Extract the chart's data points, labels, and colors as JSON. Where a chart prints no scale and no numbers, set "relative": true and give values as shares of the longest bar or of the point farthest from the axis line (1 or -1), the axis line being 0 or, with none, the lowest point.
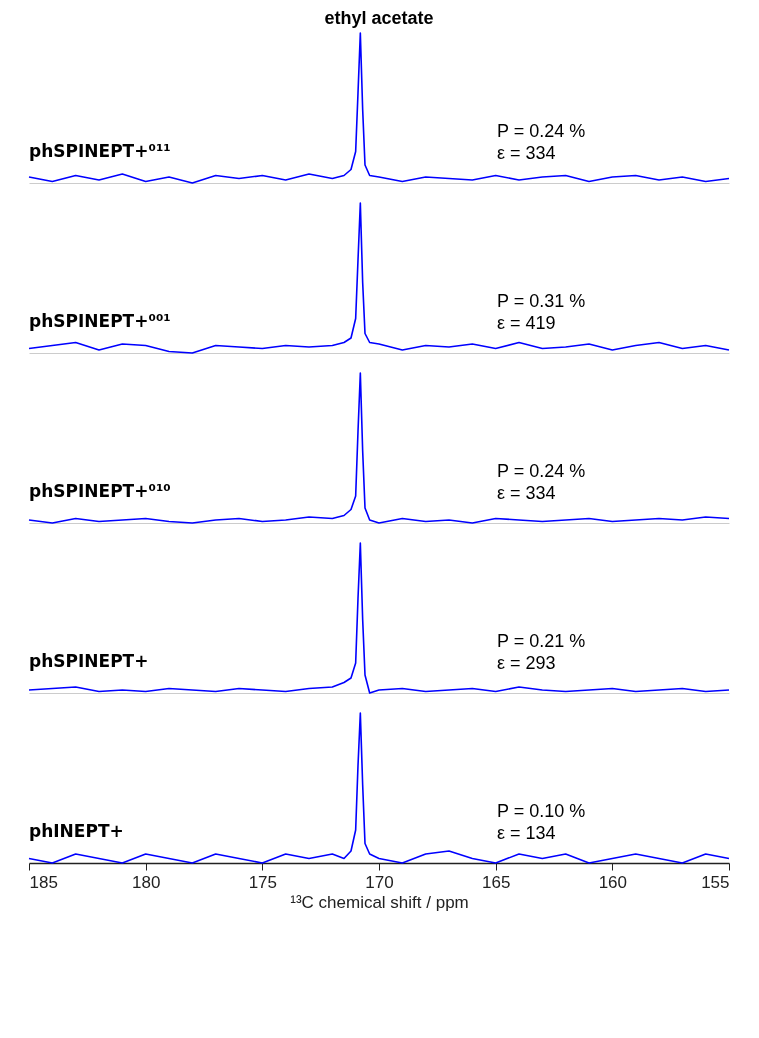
{
  "chart_data": [
    {
      "type": "line",
      "title": "ethyl acetate",
      "relative": true,
      "xlim": [
        185,
        155
      ],
      "tick_labels": false,
      "annotations": [
        "phSPINEPT+⁰¹¹",
        "P = 0.24 %",
        "ε = 334"
      ],
      "series": [
        {
          "color": "#0000ff",
          "x": [
            185,
            184,
            183,
            182,
            181,
            180,
            179,
            178,
            177,
            176,
            175,
            174,
            173,
            172,
            171.5,
            171.2,
            171.0,
            170.9,
            170.8,
            170.7,
            170.6,
            170.4,
            170,
            169,
            168,
            167,
            166,
            165,
            164,
            163,
            162,
            161,
            160,
            159,
            158,
            157,
            156,
            155
          ],
          "values": [
            0.04,
            0.01,
            0.05,
            0.02,
            0.06,
            0.01,
            0.04,
            0.0,
            0.05,
            0.03,
            0.05,
            0.02,
            0.06,
            0.03,
            0.05,
            0.09,
            0.21,
            0.6,
            1.0,
            0.49,
            0.12,
            0.05,
            0.04,
            0.01,
            0.04,
            0.03,
            0.02,
            0.05,
            0.02,
            0.04,
            0.05,
            0.01,
            0.04,
            0.05,
            0.02,
            0.04,
            0.01,
            0.03
          ]
        }
      ]
    },
    {
      "type": "line",
      "relative": true,
      "xlim": [
        185,
        155
      ],
      "tick_labels": false,
      "annotations": [
        "phSPINEPT+⁰⁰¹",
        "P = 0.31 %",
        "ε = 419"
      ],
      "series": [
        {
          "color": "#0000ff",
          "x": [
            185,
            184,
            183,
            182,
            181,
            180,
            179,
            178,
            177,
            176,
            175,
            174,
            173,
            172,
            171.5,
            171.2,
            171.0,
            170.9,
            170.8,
            170.7,
            170.6,
            170.4,
            170,
            169,
            168,
            167,
            166,
            165,
            164,
            163,
            162,
            161,
            160,
            159,
            158,
            157,
            156,
            155
          ],
          "values": [
            0.03,
            0.05,
            0.07,
            0.02,
            0.06,
            0.05,
            0.01,
            0.0,
            0.05,
            0.04,
            0.03,
            0.05,
            0.04,
            0.05,
            0.07,
            0.1,
            0.23,
            0.62,
            1.0,
            0.47,
            0.13,
            0.07,
            0.06,
            0.02,
            0.05,
            0.04,
            0.06,
            0.03,
            0.07,
            0.03,
            0.04,
            0.06,
            0.02,
            0.05,
            0.07,
            0.03,
            0.05,
            0.02
          ]
        }
      ]
    },
    {
      "type": "line",
      "relative": true,
      "xlim": [
        185,
        155
      ],
      "tick_labels": false,
      "annotations": [
        "phSPINEPT+⁰¹⁰",
        "P = 0.24 %",
        "ε = 334"
      ],
      "series": [
        {
          "color": "#0000ff",
          "x": [
            185,
            184,
            183,
            182,
            181,
            180,
            179,
            178,
            177,
            176,
            175,
            174,
            173,
            172,
            171.5,
            171.2,
            171.0,
            170.9,
            170.8,
            170.7,
            170.6,
            170.4,
            170,
            169,
            168,
            167,
            166,
            165,
            164,
            163,
            162,
            161,
            160,
            159,
            158,
            157,
            156,
            155
          ],
          "values": [
            0.02,
            0.0,
            0.03,
            0.01,
            0.02,
            0.03,
            0.01,
            0.0,
            0.02,
            0.03,
            0.01,
            0.02,
            0.04,
            0.03,
            0.05,
            0.09,
            0.18,
            0.61,
            1.0,
            0.48,
            0.1,
            0.02,
            0.0,
            0.03,
            0.01,
            0.02,
            0.0,
            0.03,
            0.02,
            0.01,
            0.02,
            0.03,
            0.01,
            0.02,
            0.03,
            0.02,
            0.04,
            0.03
          ]
        }
      ]
    },
    {
      "type": "line",
      "relative": true,
      "xlim": [
        185,
        155
      ],
      "tick_labels": false,
      "annotations": [
        "phSPINEPT+",
        "P = 0.21 %",
        "ε = 293"
      ],
      "series": [
        {
          "color": "#0000ff",
          "x": [
            185,
            184,
            183,
            182,
            181,
            180,
            179,
            178,
            177,
            176,
            175,
            174,
            173,
            172,
            171.5,
            171.2,
            171.0,
            170.9,
            170.8,
            170.7,
            170.6,
            170.4,
            170,
            169,
            168,
            167,
            166,
            165,
            164,
            163,
            162,
            161,
            160,
            159,
            158,
            157,
            156,
            155
          ],
          "values": [
            0.02,
            0.03,
            0.04,
            0.01,
            0.02,
            0.01,
            0.03,
            0.02,
            0.01,
            0.03,
            0.02,
            0.01,
            0.03,
            0.04,
            0.07,
            0.1,
            0.2,
            0.63,
            1.0,
            0.49,
            0.12,
            0.0,
            0.02,
            0.03,
            0.01,
            0.02,
            0.03,
            0.01,
            0.04,
            0.02,
            0.01,
            0.02,
            0.03,
            0.01,
            0.02,
            0.03,
            0.01,
            0.02
          ]
        }
      ]
    },
    {
      "type": "line",
      "relative": true,
      "xlim": [
        185,
        155
      ],
      "xticks": [
        185,
        180,
        175,
        170,
        165,
        160,
        155
      ],
      "xlabel": "¹³C chemical shift / ppm",
      "tick_labels": "x",
      "annotations": [
        "phINEPT+",
        "P = 0.10 %",
        "ε = 134"
      ],
      "series": [
        {
          "color": "#0000ff",
          "x": [
            185,
            184,
            183,
            182,
            181,
            180,
            179,
            178,
            177,
            176,
            175,
            174,
            173,
            172,
            171.5,
            171.2,
            171.0,
            170.9,
            170.8,
            170.7,
            170.6,
            170.4,
            170,
            169,
            168,
            167,
            166,
            165,
            164,
            163,
            162,
            161,
            160,
            159,
            158,
            157,
            156,
            155
          ],
          "values": [
            0.03,
            0.0,
            0.06,
            0.03,
            0.0,
            0.06,
            0.03,
            0.0,
            0.06,
            0.03,
            0.0,
            0.06,
            0.03,
            0.06,
            0.03,
            0.08,
            0.22,
            0.65,
            1.0,
            0.52,
            0.13,
            0.06,
            0.03,
            0.0,
            0.06,
            0.08,
            0.03,
            0.0,
            0.06,
            0.03,
            0.06,
            0.0,
            0.03,
            0.06,
            0.03,
            0.0,
            0.06,
            0.03
          ]
        }
      ]
    }
  ]
}
